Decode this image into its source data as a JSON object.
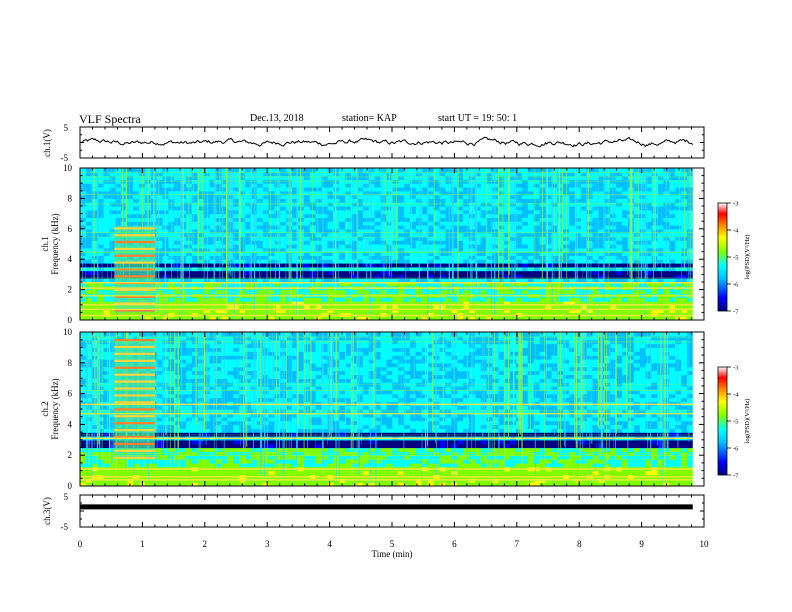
{
  "header": {
    "title": "VLF Spectra",
    "date": "Dec.13, 2018",
    "station": "station= KAP",
    "start": "start  UT =   19: 50: 1"
  },
  "chart_data": [
    {
      "type": "line",
      "name": "ch1-waveform",
      "ylabel": "ch.1(V)",
      "ylim": [
        -5,
        5
      ],
      "yticks": [
        "5",
        "-5"
      ],
      "xlim": [
        0,
        10
      ],
      "note": "noisy waveform oscillating roughly between -1.5 and 1.5 V"
    },
    {
      "type": "heatmap",
      "name": "ch1-spectrogram",
      "ylabel_line1": "ch.1",
      "ylabel_line2": "Frequency (kHz)",
      "ylim": [
        0,
        10
      ],
      "yticks": [
        "0",
        "2",
        "4",
        "6",
        "8",
        "10"
      ],
      "xlim": [
        0,
        10
      ],
      "colorbar": {
        "label": "log(PSD)(V²/Hz)",
        "range": [
          -7,
          -3
        ],
        "ticks": [
          "-3",
          "-4",
          "-5",
          "-6",
          "-7"
        ]
      },
      "features": {
        "burst_time_min": [
          0.55,
          1.2
        ],
        "burst_freq_khz": [
          0.5,
          6.2
        ],
        "strong_bands_khz": [
          0.3,
          0.7,
          1.0,
          1.6,
          2.1,
          2.45
        ],
        "dark_bands_khz": [
          [
            2.8,
            3.3
          ],
          [
            3.5,
            3.7
          ]
        ]
      }
    },
    {
      "type": "heatmap",
      "name": "ch2-spectrogram",
      "ylabel_line1": "ch.2",
      "ylabel_line2": "Frequency (kHz)",
      "ylim": [
        0,
        10
      ],
      "yticks": [
        "0",
        "2",
        "4",
        "6",
        "8",
        "10"
      ],
      "xlim": [
        0,
        10
      ],
      "colorbar": {
        "label": "log(PSD)(V²/Hz)",
        "range": [
          -7,
          -3
        ],
        "ticks": [
          "-3",
          "-4",
          "-5",
          "-6",
          "-7"
        ]
      },
      "features": {
        "burst_time_min": [
          0.55,
          1.2
        ],
        "burst_freq_khz": [
          1.7,
          9.5
        ],
        "strong_bands_khz": [
          0.4,
          0.6,
          1.1,
          3.1,
          4.7,
          5.3
        ],
        "dark_bands_khz": [
          [
            2.6,
            3.0
          ],
          [
            3.3,
            3.6
          ]
        ]
      }
    },
    {
      "type": "line",
      "name": "ch3-waveform",
      "ylabel": "ch.3(V)",
      "ylim": [
        -5,
        5
      ],
      "yticks": [
        "5",
        "-5"
      ],
      "xlim": [
        0,
        10
      ],
      "xlabel": "Time (min)",
      "xticks": [
        "0",
        "1",
        "2",
        "3",
        "4",
        "5",
        "6",
        "7",
        "8",
        "9",
        "10"
      ],
      "constant_value": 1.3
    }
  ],
  "colors": {
    "waveform": "#000000",
    "colormap": [
      "#000080",
      "#0000ff",
      "#00bfff",
      "#00ffff",
      "#7fff00",
      "#ffff00",
      "#ff7f00",
      "#ff0000",
      "#ffffff"
    ]
  }
}
